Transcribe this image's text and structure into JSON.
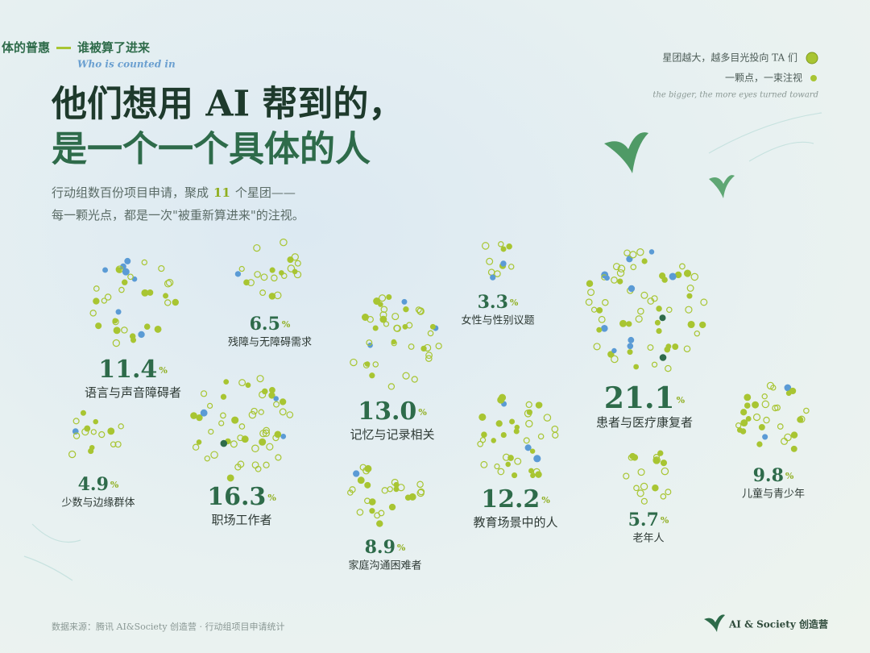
{
  "header": {
    "kicker": "体的普惠",
    "kicker_sub": "谁被算了进来",
    "kicker_en": "Who is counted in",
    "title_line1": "他们想用 AI 帮到的，",
    "title_line2": "是一个一个具体的人",
    "desc_before": "行动组数百份项目申请，聚成",
    "cluster_count": 11,
    "desc_after": "个星团——",
    "desc_line2": "每一颗光点，都是一次\"被重新算进来\"的注视。"
  },
  "legend": {
    "big": "星团越大，越多目光投向 TA 们",
    "small": "一颗点，一束注视",
    "en": "the bigger, the more eyes turned toward"
  },
  "chart_data": {
    "type": "cluster",
    "unit": "%",
    "categories": [
      "语言与声音障碍者",
      "残障与无障碍需求",
      "记忆与记录相关",
      "女性与性别议题",
      "患者与医疗康复者",
      "少数与边缘群体",
      "职场工作者",
      "家庭沟通困难者",
      "教育场景中的人",
      "老年人",
      "儿童与青少年"
    ],
    "values": [
      11.4,
      6.5,
      13.0,
      3.3,
      21.1,
      4.9,
      16.3,
      8.9,
      12.2,
      5.7,
      9.8
    ],
    "value_labels": [
      "11.4",
      "6.5",
      "13.0",
      "3.3",
      "21.1",
      "4.9",
      "16.3",
      "8.9",
      "12.2",
      "5.7",
      "9.8"
    ],
    "colors": [
      "#a8c532",
      "#5b9bd5",
      "#2e6b4a"
    ]
  },
  "footer": {
    "source": "数据来源：腾讯 AI&Society 创造营 · 行动组项目申请统计",
    "brand": "AI & Society 创造营"
  }
}
